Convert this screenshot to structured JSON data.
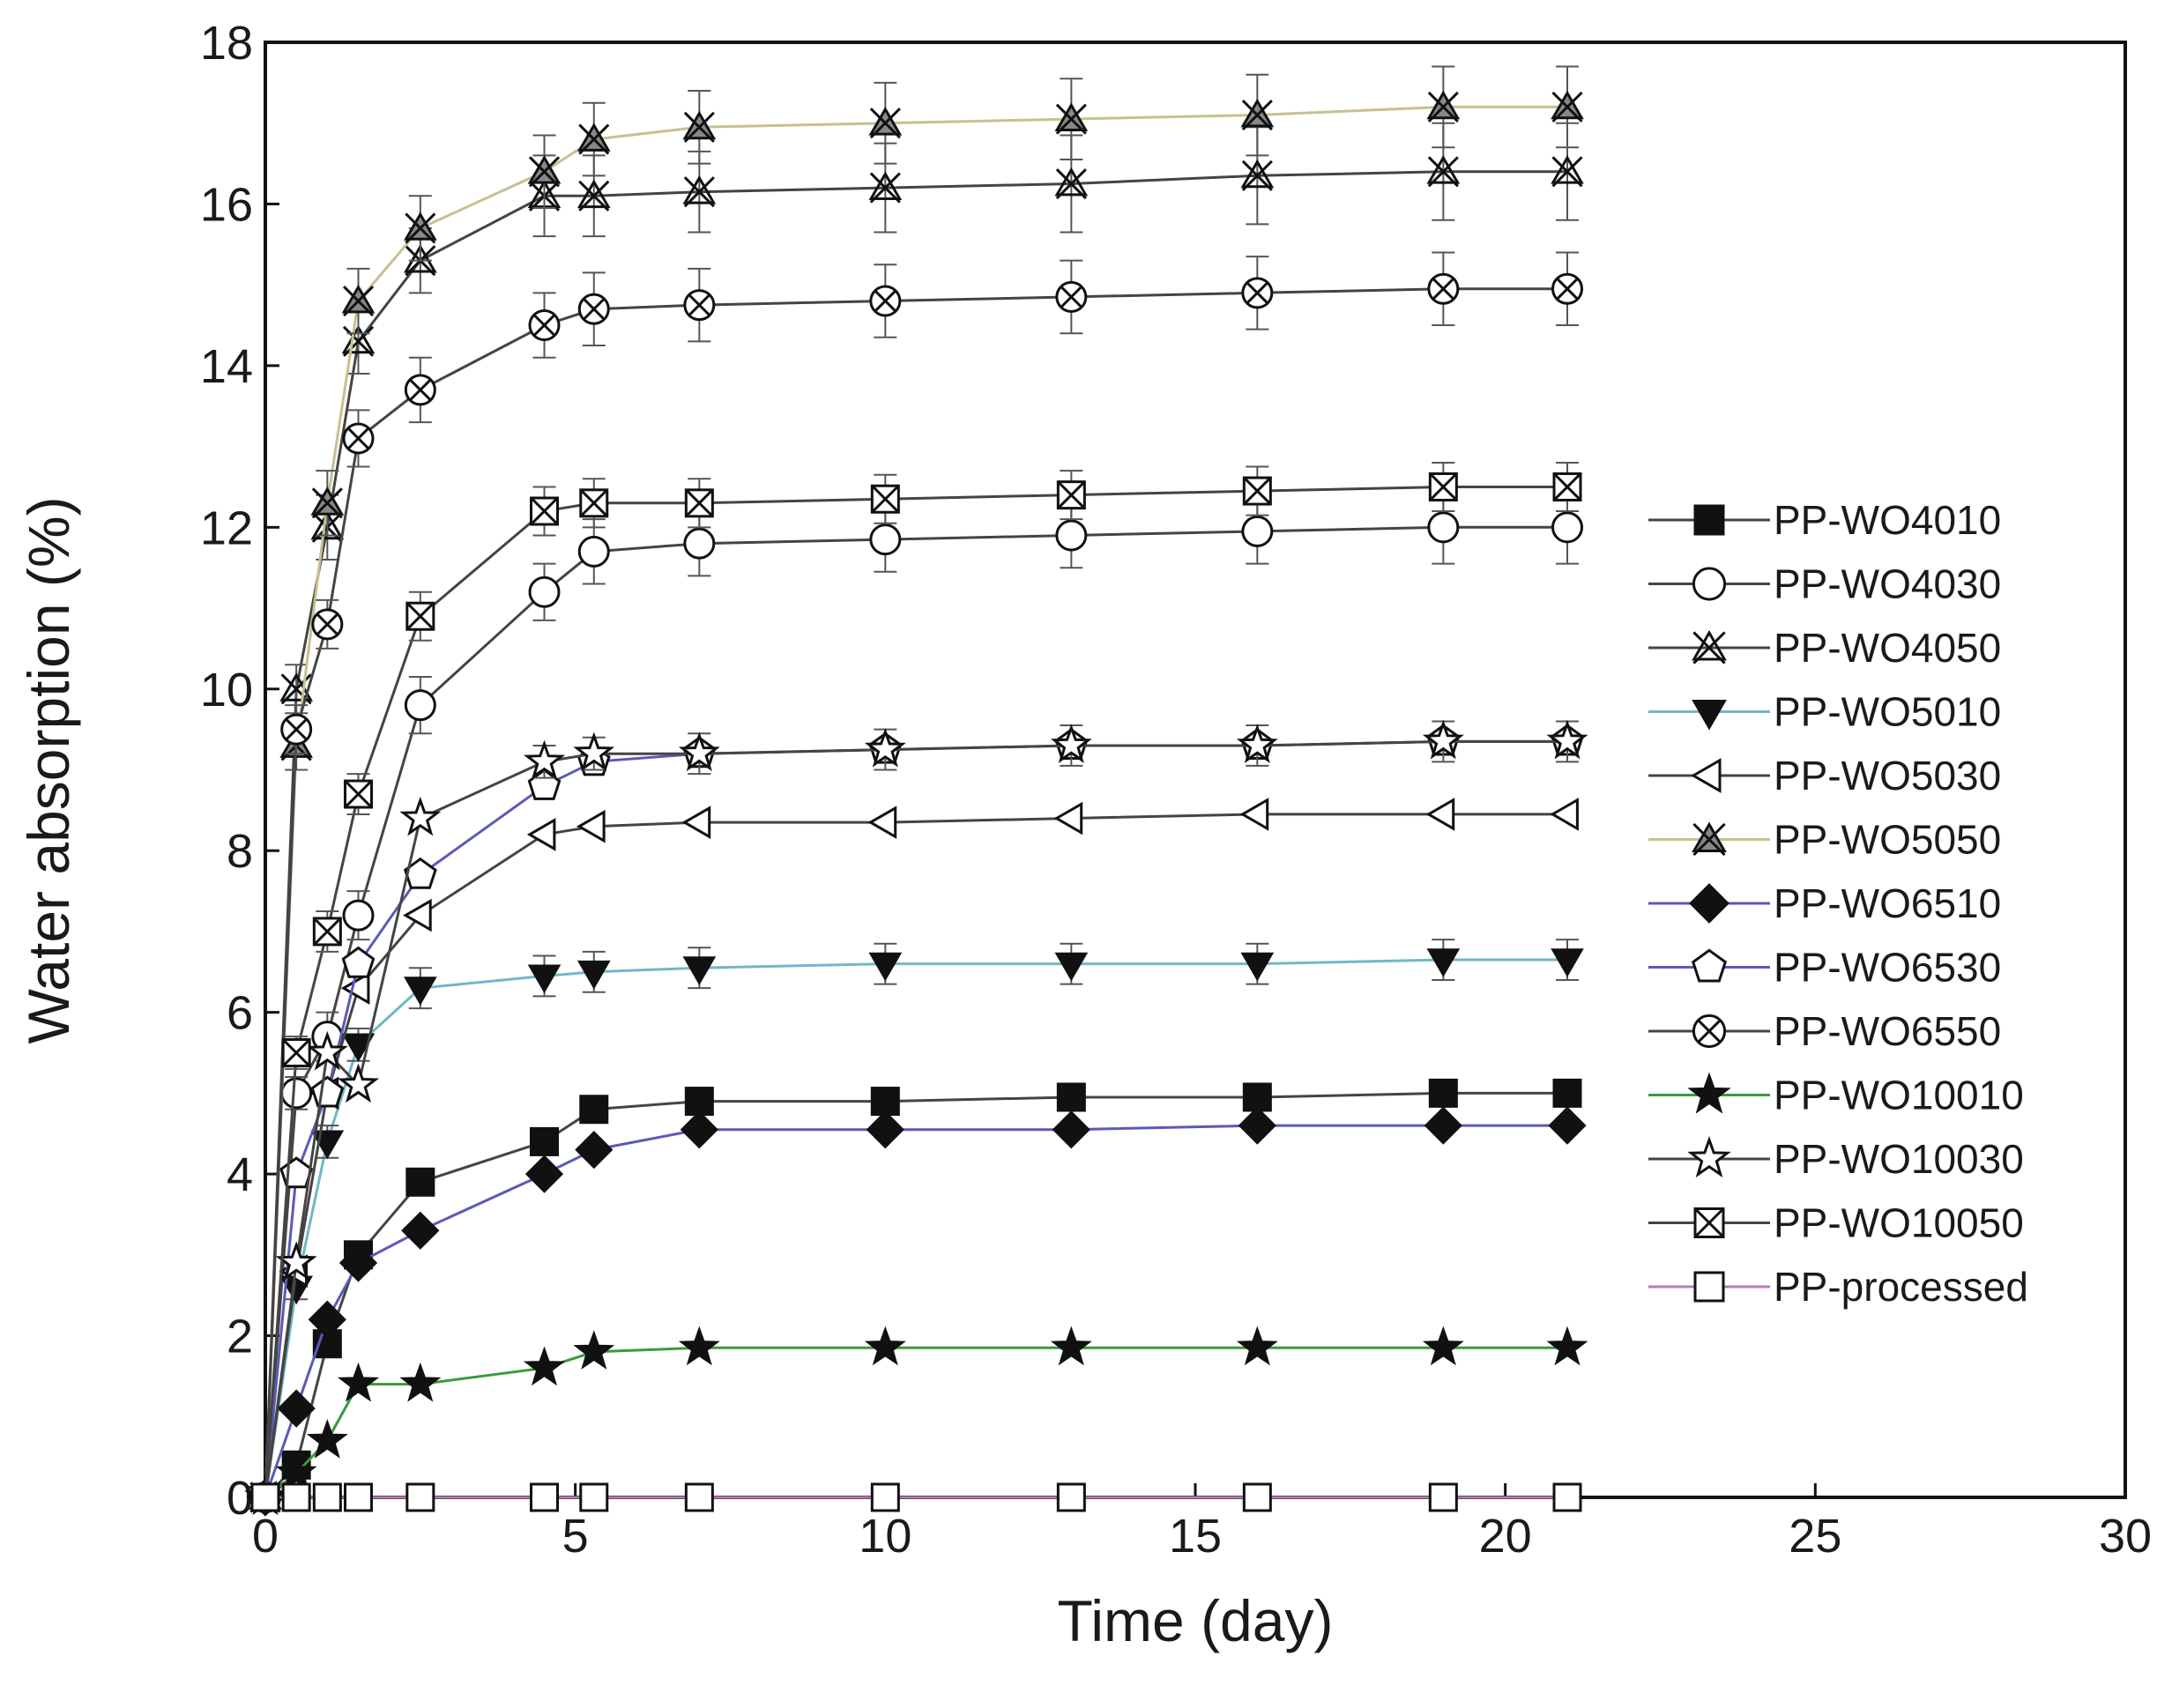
{
  "chart_data": {
    "type": "line",
    "title": "",
    "xlabel": "Time (day)",
    "ylabel": "Water absorption (%)",
    "xlim": [
      0,
      30
    ],
    "ylim": [
      0,
      18
    ],
    "xticks": [
      0,
      5,
      10,
      15,
      20,
      25,
      30
    ],
    "yticks": [
      0,
      2,
      4,
      6,
      8,
      10,
      12,
      14,
      16,
      18
    ],
    "legend_position": "right",
    "grid": false,
    "x": [
      0,
      0.5,
      1,
      1.5,
      2.5,
      4.5,
      5.3,
      7,
      10,
      13,
      16,
      19,
      21
    ],
    "series": [
      {
        "name": "PP-WO4010",
        "marker": "square-filled",
        "line_color": "#444444",
        "values": [
          0,
          0.4,
          1.9,
          3.0,
          3.9,
          4.4,
          4.8,
          4.9,
          4.9,
          4.95,
          4.95,
          5.0,
          5.0
        ],
        "error": [
          0,
          0,
          0,
          0,
          0,
          0,
          0,
          0,
          0,
          0,
          0,
          0,
          0
        ]
      },
      {
        "name": "PP-WO4030",
        "marker": "circle-open",
        "line_color": "#444444",
        "values": [
          0,
          5.0,
          5.7,
          7.2,
          9.8,
          11.2,
          11.7,
          11.8,
          11.85,
          11.9,
          11.95,
          12.0,
          12.0
        ],
        "error": [
          0,
          0.2,
          0.3,
          0.3,
          0.35,
          0.35,
          0.4,
          0.4,
          0.4,
          0.4,
          0.4,
          0.45,
          0.45
        ]
      },
      {
        "name": "PP-WO4050",
        "marker": "triangle-x",
        "line_color": "#444444",
        "values": [
          0,
          10.0,
          12.0,
          14.3,
          15.3,
          16.1,
          16.1,
          16.15,
          16.2,
          16.25,
          16.35,
          16.4,
          16.4
        ],
        "error": [
          0,
          0.3,
          0.4,
          0.4,
          0.4,
          0.5,
          0.5,
          0.5,
          0.55,
          0.6,
          0.6,
          0.6,
          0.6
        ]
      },
      {
        "name": "PP-WO5010",
        "marker": "triangle-down-filled",
        "line_color": "#6fb8c7",
        "values": [
          0,
          2.6,
          4.4,
          5.6,
          6.3,
          6.45,
          6.5,
          6.55,
          6.6,
          6.6,
          6.6,
          6.65,
          6.65
        ],
        "error": [
          0,
          0.15,
          0.2,
          0.2,
          0.25,
          0.25,
          0.25,
          0.25,
          0.25,
          0.25,
          0.25,
          0.25,
          0.25
        ]
      },
      {
        "name": "PP-WO5030",
        "marker": "triangle-left-open",
        "line_color": "#444444",
        "values": [
          0,
          2.8,
          5.0,
          6.3,
          7.2,
          8.2,
          8.3,
          8.35,
          8.35,
          8.4,
          8.45,
          8.45,
          8.45
        ],
        "error": [
          0,
          0,
          0,
          0,
          0,
          0,
          0,
          0,
          0,
          0,
          0,
          0,
          0
        ]
      },
      {
        "name": "PP-WO5050",
        "marker": "triangle-x-filled",
        "line_color": "#c8c090",
        "values": [
          0,
          9.3,
          12.3,
          14.8,
          15.7,
          16.4,
          16.8,
          16.95,
          17.0,
          17.05,
          17.1,
          17.2,
          17.2
        ],
        "error": [
          0,
          0.3,
          0.4,
          0.4,
          0.4,
          0.45,
          0.45,
          0.45,
          0.5,
          0.5,
          0.5,
          0.5,
          0.5
        ]
      },
      {
        "name": "PP-WO6510",
        "marker": "diamond-filled",
        "line_color": "#5a5ab8",
        "values": [
          0,
          1.1,
          2.2,
          2.9,
          3.3,
          4.0,
          4.3,
          4.55,
          4.55,
          4.55,
          4.6,
          4.6,
          4.6
        ],
        "error": [
          0,
          0,
          0,
          0,
          0,
          0,
          0,
          0,
          0,
          0,
          0,
          0,
          0
        ]
      },
      {
        "name": "PP-WO6530",
        "marker": "pentagon-open",
        "line_color": "#5a5ab8",
        "values": [
          0,
          4.0,
          5.0,
          6.6,
          7.7,
          8.8,
          9.1,
          9.2,
          9.25,
          9.3,
          9.3,
          9.35,
          9.35
        ],
        "error": [
          0,
          0,
          0,
          0,
          0,
          0,
          0,
          0,
          0,
          0,
          0,
          0,
          0
        ]
      },
      {
        "name": "PP-WO6550",
        "marker": "circle-x",
        "line_color": "#444444",
        "values": [
          0,
          9.5,
          10.8,
          13.1,
          13.7,
          14.5,
          14.7,
          14.75,
          14.8,
          14.85,
          14.9,
          14.95,
          14.95
        ],
        "error": [
          0,
          0.3,
          0.3,
          0.35,
          0.4,
          0.4,
          0.45,
          0.45,
          0.45,
          0.45,
          0.45,
          0.45,
          0.45
        ]
      },
      {
        "name": "PP-WO10010",
        "marker": "star-filled",
        "line_color": "#3a9a3a",
        "values": [
          0,
          0.3,
          0.7,
          1.4,
          1.4,
          1.6,
          1.8,
          1.85,
          1.85,
          1.85,
          1.85,
          1.85,
          1.85
        ],
        "error": [
          0,
          0,
          0,
          0,
          0,
          0,
          0,
          0,
          0,
          0,
          0,
          0,
          0
        ]
      },
      {
        "name": "PP-WO10030",
        "marker": "star-open",
        "line_color": "#444444",
        "values": [
          0,
          2.9,
          5.5,
          5.1,
          8.4,
          9.1,
          9.2,
          9.2,
          9.25,
          9.3,
          9.3,
          9.35,
          9.35
        ],
        "error": [
          0,
          0,
          0,
          0,
          0,
          0.2,
          0.2,
          0.25,
          0.25,
          0.25,
          0.25,
          0.25,
          0.25
        ]
      },
      {
        "name": "PP-WO10050",
        "marker": "square-x",
        "line_color": "#444444",
        "values": [
          0,
          5.5,
          7.0,
          8.7,
          10.9,
          12.2,
          12.3,
          12.3,
          12.35,
          12.4,
          12.45,
          12.5,
          12.5
        ],
        "error": [
          0,
          0.2,
          0.25,
          0.25,
          0.3,
          0.3,
          0.3,
          0.3,
          0.3,
          0.3,
          0.3,
          0.3,
          0.3
        ]
      },
      {
        "name": "PP-processed",
        "marker": "square-open",
        "line_color": "#b87ab8",
        "values": [
          0,
          0,
          0,
          0,
          0,
          0,
          0,
          0,
          0,
          0,
          0,
          0,
          0
        ],
        "error": [
          0,
          0,
          0,
          0,
          0,
          0,
          0,
          0,
          0,
          0,
          0,
          0,
          0
        ]
      }
    ]
  }
}
